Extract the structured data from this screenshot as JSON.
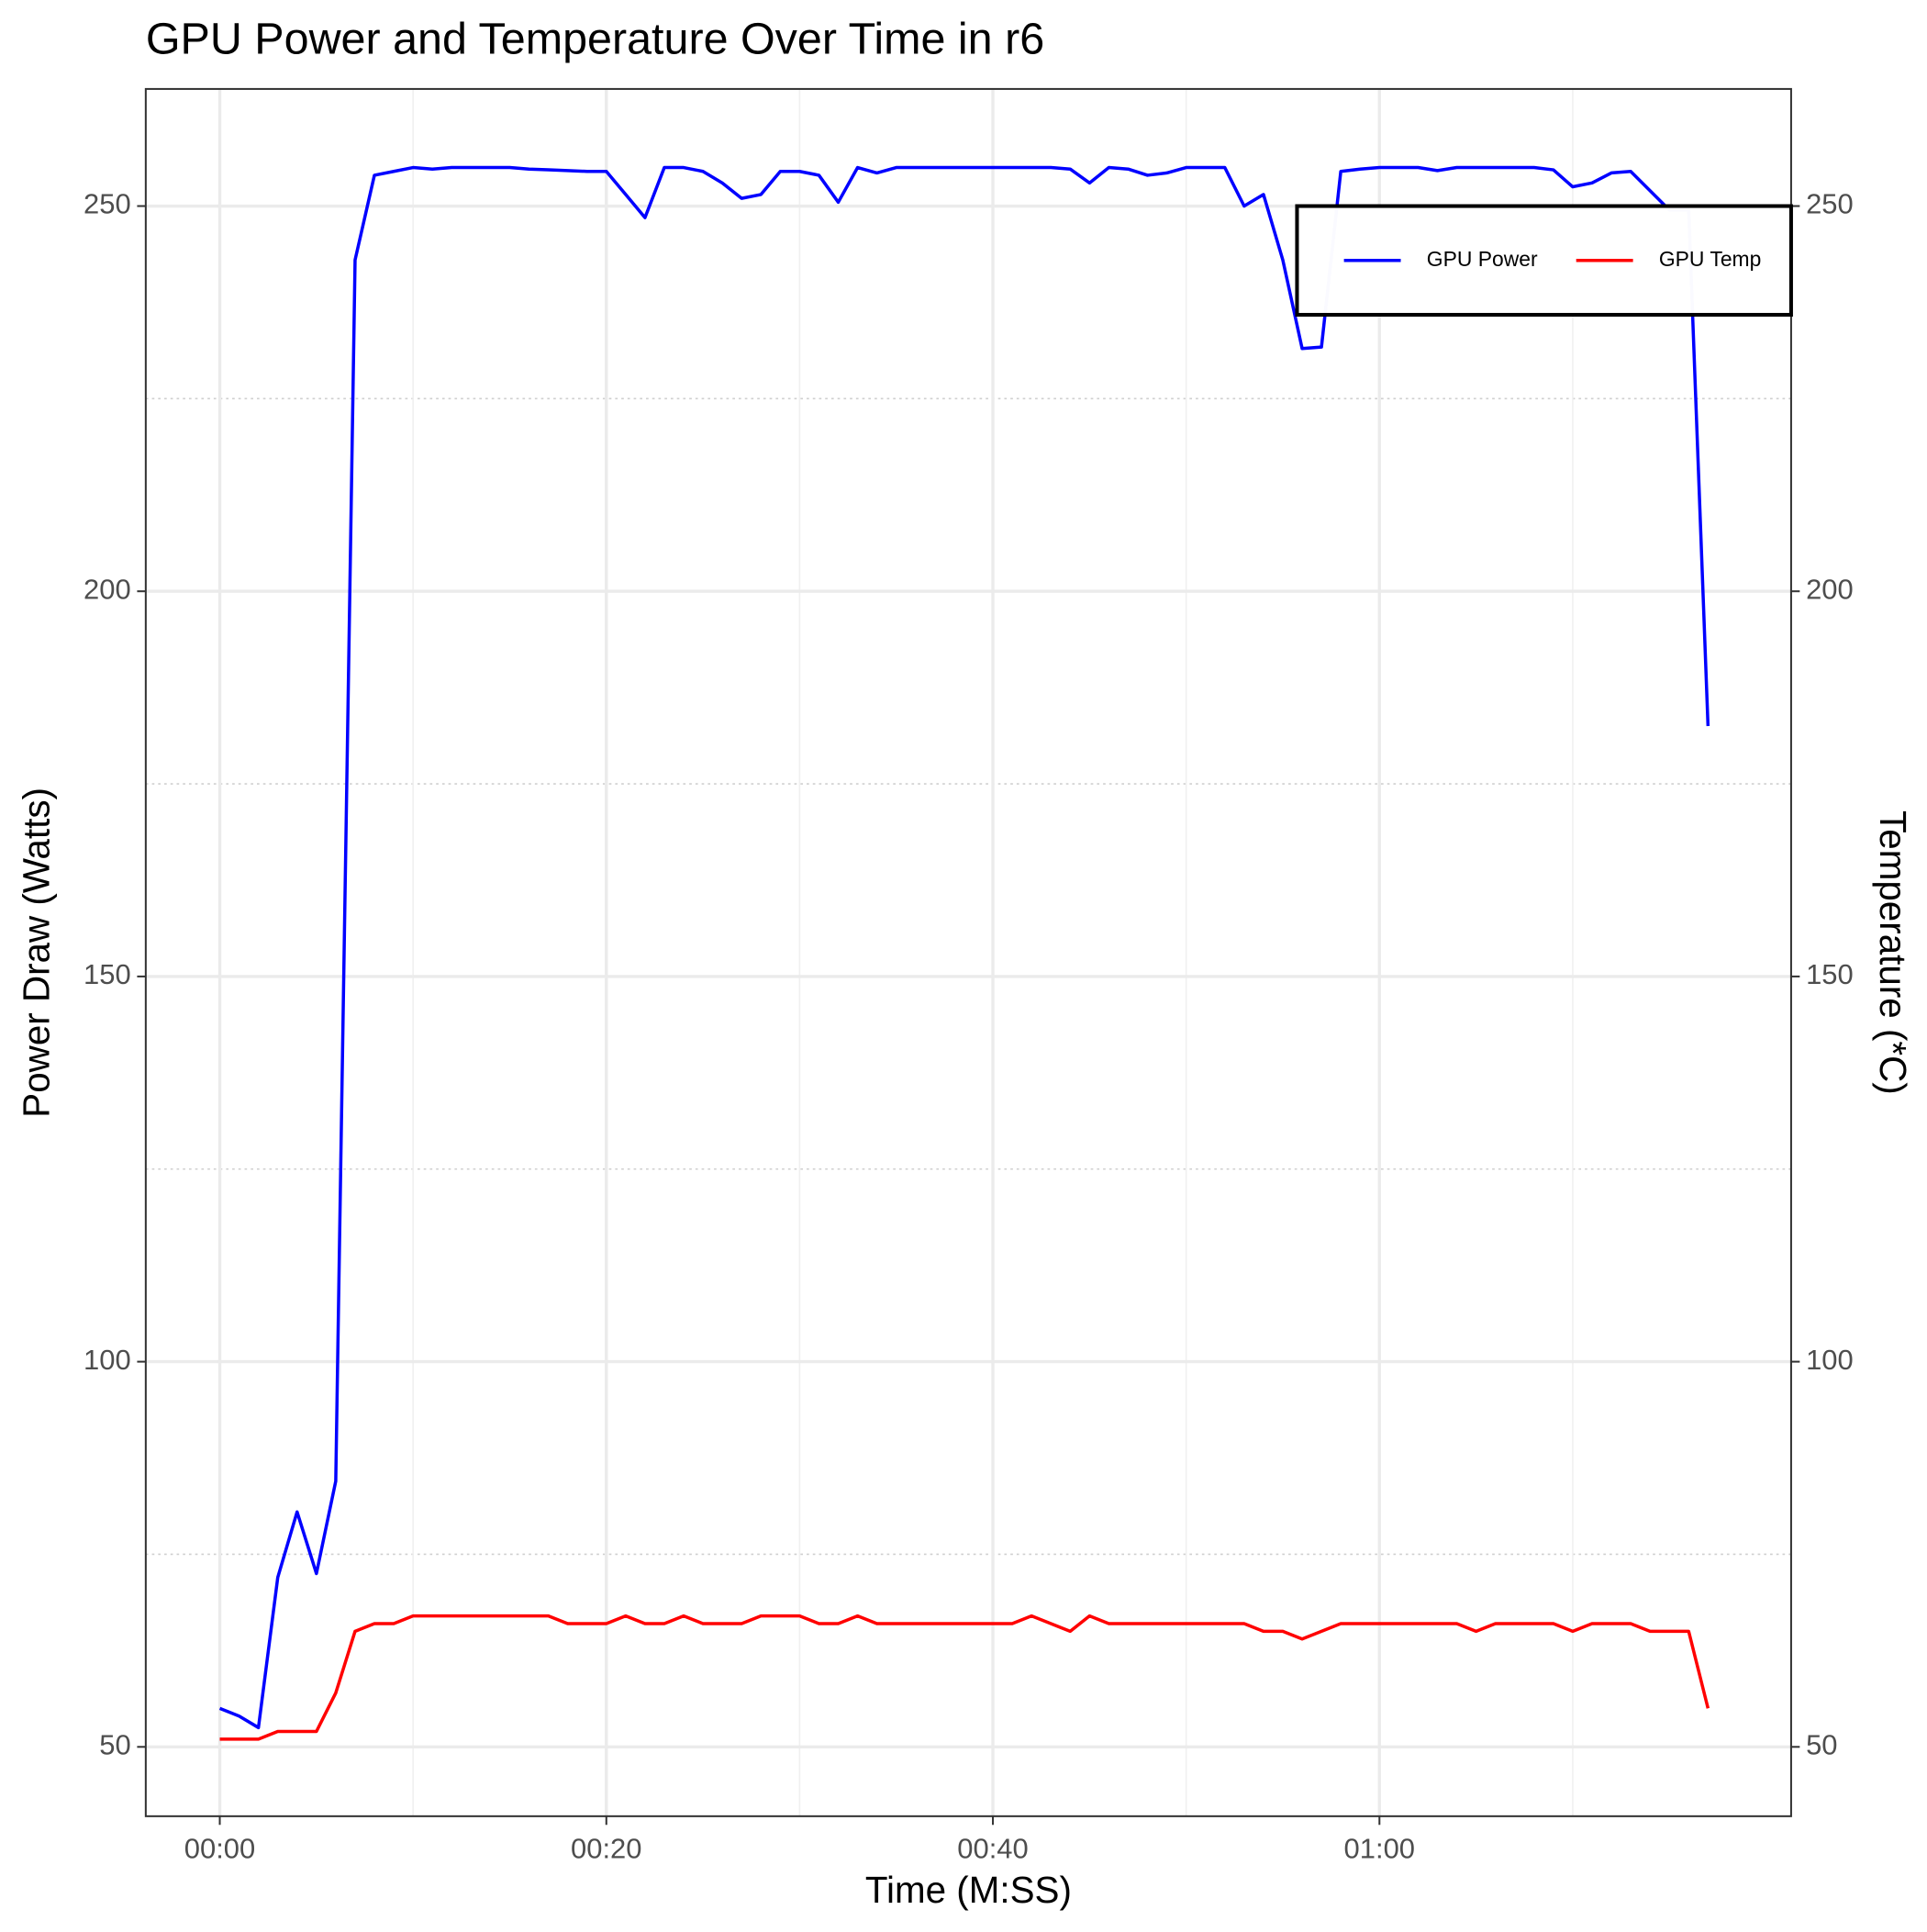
{
  "chart_data": {
    "type": "line",
    "title": "GPU Power and Temperature Over Time in r6",
    "x_label": "Time (M:SS)",
    "y_label": "Power Draw (Watts)",
    "y2_label": "Temperature (*C)",
    "x": [
      0,
      1,
      2,
      3,
      4,
      5,
      6,
      7,
      8,
      9,
      10,
      11,
      12,
      13,
      14,
      15,
      16,
      17,
      18,
      19,
      20,
      21,
      22,
      23,
      24,
      25,
      26,
      27,
      28,
      29,
      30,
      31,
      32,
      33,
      34,
      35,
      36,
      37,
      38,
      39,
      40,
      41,
      42,
      43,
      44,
      45,
      46,
      47,
      48,
      49,
      50,
      51,
      52,
      53,
      54,
      55,
      56,
      57,
      58,
      59,
      60,
      61,
      62,
      63,
      64,
      65,
      66,
      67,
      68,
      69,
      70,
      71,
      72,
      73,
      74,
      75,
      76,
      77
    ],
    "series": [
      {
        "name": "GPU Power",
        "color": "#0000ff",
        "values": [
          55,
          54,
          52.5,
          72,
          80.5,
          72.5,
          84.5,
          243,
          254,
          254.5,
          255,
          254.8,
          255,
          255,
          255,
          255,
          254.8,
          254.7,
          254.6,
          254.5,
          254.5,
          251.5,
          248.5,
          255,
          255,
          254.5,
          253,
          251,
          251.5,
          254.5,
          254.5,
          254,
          250.5,
          255,
          254.3,
          255,
          255,
          255,
          255,
          255,
          255,
          255,
          255,
          255,
          254.8,
          253,
          255,
          254.8,
          254,
          254.3,
          255,
          255,
          255,
          250,
          251.5,
          243,
          231.5,
          231.7,
          254.5,
          254.8,
          255,
          255,
          255,
          254.6,
          255,
          255,
          255,
          255,
          255,
          254.7,
          252.5,
          253,
          254.3,
          254.5,
          252,
          249.5,
          249.5,
          182.5
        ]
      },
      {
        "name": "GPU Temp",
        "color": "#ff0000",
        "axis": "y2",
        "values": [
          51,
          51,
          51,
          52,
          52,
          52,
          57,
          65,
          66,
          66,
          67,
          67,
          67,
          67,
          67,
          67,
          67,
          67,
          66,
          66,
          66,
          67,
          66,
          66,
          67,
          66,
          66,
          66,
          67,
          67,
          67,
          66,
          66,
          67,
          66,
          66,
          66,
          66,
          66,
          66,
          66,
          66,
          67,
          66,
          65,
          67,
          66,
          66,
          66,
          66,
          66,
          66,
          66,
          66,
          65,
          65,
          64,
          65,
          66,
          66,
          66,
          66,
          66,
          66,
          66,
          65,
          66,
          66,
          66,
          66,
          65,
          66,
          66,
          66,
          65,
          65,
          65,
          55
        ]
      }
    ],
    "xlim": [
      -3.83,
      81.3
    ],
    "xticks": [
      {
        "value": 0,
        "label": "00:00"
      },
      {
        "value": 20,
        "label": "00:20"
      },
      {
        "value": 40,
        "label": "00:40"
      },
      {
        "value": 60,
        "label": "01:00"
      }
    ],
    "x_minor_gridlines": [
      10,
      30,
      50,
      70
    ],
    "ylim": [
      41,
      265.2
    ],
    "yticks": [
      50,
      100,
      150,
      200,
      250
    ],
    "y_minor_gridlines": [
      75,
      125,
      175,
      225
    ],
    "y2lim": [
      41,
      265.2
    ],
    "y2ticks": [
      50,
      100,
      150,
      200,
      250
    ],
    "grid": true,
    "legend_position": "top-right"
  }
}
